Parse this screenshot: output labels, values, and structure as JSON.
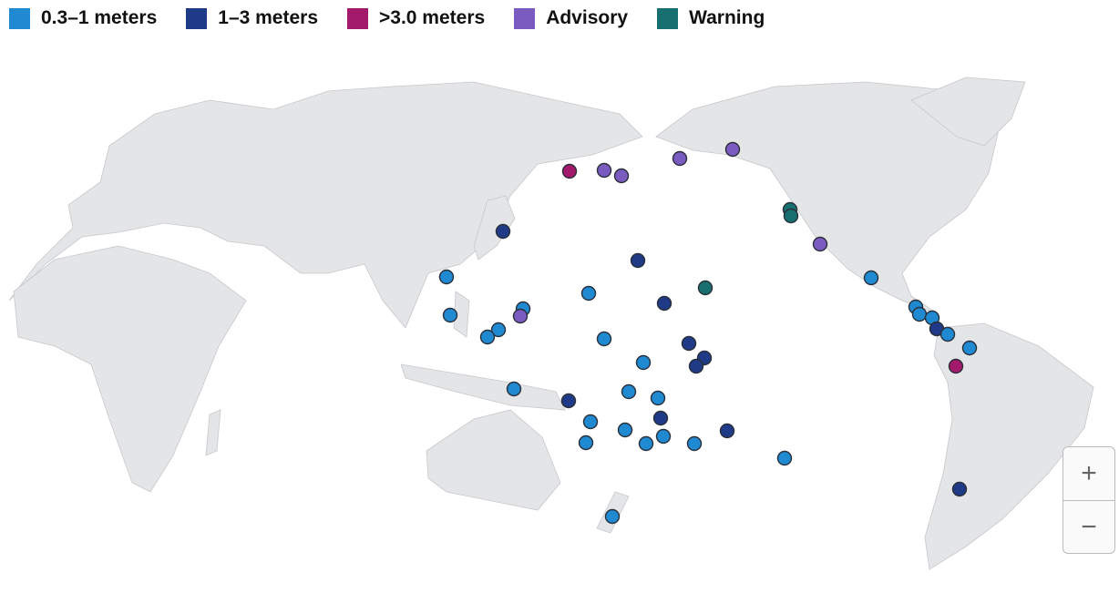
{
  "legend": [
    {
      "label": "0.3–1 meters",
      "color": "#1f8ad1"
    },
    {
      "label": "1–3 meters",
      "color": "#1f3a86"
    },
    {
      "label": ">3.0 meters",
      "color": "#a3196b"
    },
    {
      "label": "Advisory",
      "color": "#7a5bbf"
    },
    {
      "label": "Warning",
      "color": "#17706f"
    }
  ],
  "zoom": {
    "in": "+",
    "out": "−"
  }
}
